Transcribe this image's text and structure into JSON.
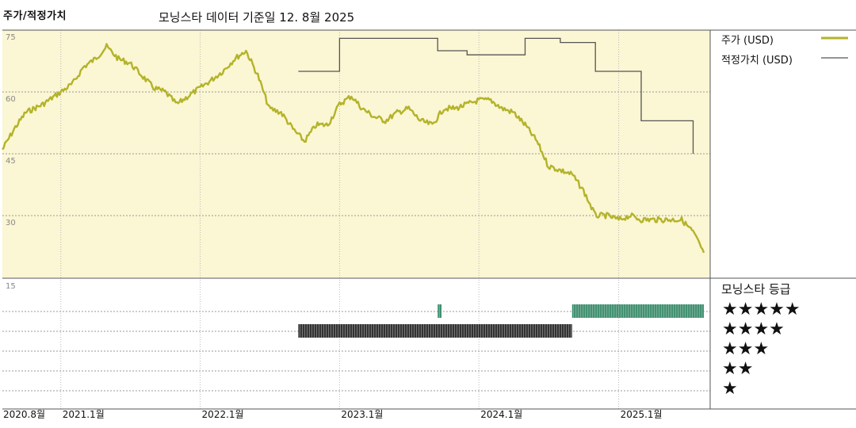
{
  "header": {
    "title": "주가/적정가치",
    "subtitle": "모닝스타 데이터 기준일 12. 8월 2025"
  },
  "legend": {
    "price_label": "주가 (USD)",
    "fair_value_label": "적정가치 (USD)"
  },
  "rating": {
    "title": "모닝스타 등급",
    "levels": [
      "★★★★★",
      "★★★★",
      "★★★",
      "★★",
      "★"
    ]
  },
  "colors": {
    "price": "#b3b32a",
    "fair_value": "#555555",
    "plot_bg": "#fbf6d3",
    "rating_3": "#333333",
    "rating_5": "#3f8f6f"
  },
  "chart_data": {
    "type": "line",
    "title": "주가/적정가치",
    "x_tick_labels": [
      "2020.8월",
      "2021.1월",
      "2022.1월",
      "2023.1월",
      "2024.1월",
      "2025.1월"
    ],
    "x_tick_dates": [
      "2020-08-01",
      "2021-01-01",
      "2022-01-01",
      "2023-01-01",
      "2024-01-01",
      "2025-01-01"
    ],
    "xlim": [
      "2020-08-01",
      "2025-08-12"
    ],
    "y_ticks": [
      75,
      60,
      45,
      30
    ],
    "ylim": [
      15,
      75
    ],
    "grid": true,
    "legend_position": "right",
    "series": [
      {
        "name": "주가 (USD)",
        "points": [
          [
            "2020-08-01",
            46
          ],
          [
            "2020-09-01",
            51
          ],
          [
            "2020-10-01",
            55
          ],
          [
            "2020-11-15",
            57
          ],
          [
            "2021-01-01",
            60
          ],
          [
            "2021-02-01",
            62
          ],
          [
            "2021-03-01",
            66
          ],
          [
            "2021-04-01",
            68
          ],
          [
            "2021-05-01",
            71
          ],
          [
            "2021-06-01",
            68
          ],
          [
            "2021-07-01",
            67
          ],
          [
            "2021-08-01",
            64
          ],
          [
            "2021-09-01",
            61
          ],
          [
            "2021-10-01",
            60
          ],
          [
            "2021-11-01",
            57
          ],
          [
            "2021-12-01",
            59
          ],
          [
            "2022-01-01",
            61
          ],
          [
            "2022-02-01",
            63
          ],
          [
            "2022-03-01",
            65
          ],
          [
            "2022-04-01",
            68
          ],
          [
            "2022-05-01",
            70
          ],
          [
            "2022-06-01",
            64
          ],
          [
            "2022-07-01",
            56
          ],
          [
            "2022-08-01",
            55
          ],
          [
            "2022-09-01",
            51
          ],
          [
            "2022-10-01",
            48
          ],
          [
            "2022-11-01",
            52
          ],
          [
            "2022-12-01",
            52
          ],
          [
            "2023-01-01",
            57
          ],
          [
            "2023-02-01",
            59
          ],
          [
            "2023-03-01",
            56
          ],
          [
            "2023-04-01",
            54
          ],
          [
            "2023-05-01",
            53
          ],
          [
            "2023-06-01",
            55
          ],
          [
            "2023-07-01",
            56
          ],
          [
            "2023-08-01",
            53
          ],
          [
            "2023-09-01",
            52
          ],
          [
            "2023-10-01",
            56
          ],
          [
            "2023-11-01",
            56
          ],
          [
            "2023-12-01",
            57
          ],
          [
            "2024-01-01",
            58
          ],
          [
            "2024-02-01",
            58
          ],
          [
            "2024-03-01",
            56
          ],
          [
            "2024-04-01",
            55
          ],
          [
            "2024-05-01",
            52
          ],
          [
            "2024-06-01",
            48
          ],
          [
            "2024-07-01",
            42
          ],
          [
            "2024-08-01",
            41
          ],
          [
            "2024-09-01",
            40
          ],
          [
            "2024-10-01",
            36
          ],
          [
            "2024-11-01",
            30
          ],
          [
            "2024-12-01",
            30
          ],
          [
            "2025-01-01",
            29
          ],
          [
            "2025-02-01",
            30
          ],
          [
            "2025-03-01",
            29
          ],
          [
            "2025-04-01",
            29
          ],
          [
            "2025-05-01",
            29
          ],
          [
            "2025-06-15",
            29
          ],
          [
            "2025-07-15",
            26
          ],
          [
            "2025-08-12",
            21
          ]
        ]
      },
      {
        "name": "적정가치 (USD)",
        "points": [
          [
            "2022-09-15",
            65
          ],
          [
            "2023-01-01",
            65
          ],
          [
            "2023-01-01",
            73
          ],
          [
            "2023-09-15",
            73
          ],
          [
            "2023-09-15",
            70
          ],
          [
            "2023-12-01",
            70
          ],
          [
            "2023-12-01",
            69
          ],
          [
            "2024-05-01",
            69
          ],
          [
            "2024-05-01",
            73
          ],
          [
            "2024-08-01",
            73
          ],
          [
            "2024-08-01",
            72
          ],
          [
            "2024-11-01",
            72
          ],
          [
            "2024-11-01",
            65
          ],
          [
            "2025-03-01",
            65
          ],
          [
            "2025-03-01",
            53
          ],
          [
            "2025-07-15",
            53
          ],
          [
            "2025-07-15",
            45
          ]
        ]
      }
    ],
    "rating_bands": [
      {
        "stars": 3,
        "start": "2022-09-15",
        "end": "2024-09-01"
      },
      {
        "stars": 5,
        "start": "2023-09-15",
        "end": "2023-09-25"
      },
      {
        "stars": 5,
        "start": "2024-09-01",
        "end": "2025-08-12"
      }
    ]
  }
}
